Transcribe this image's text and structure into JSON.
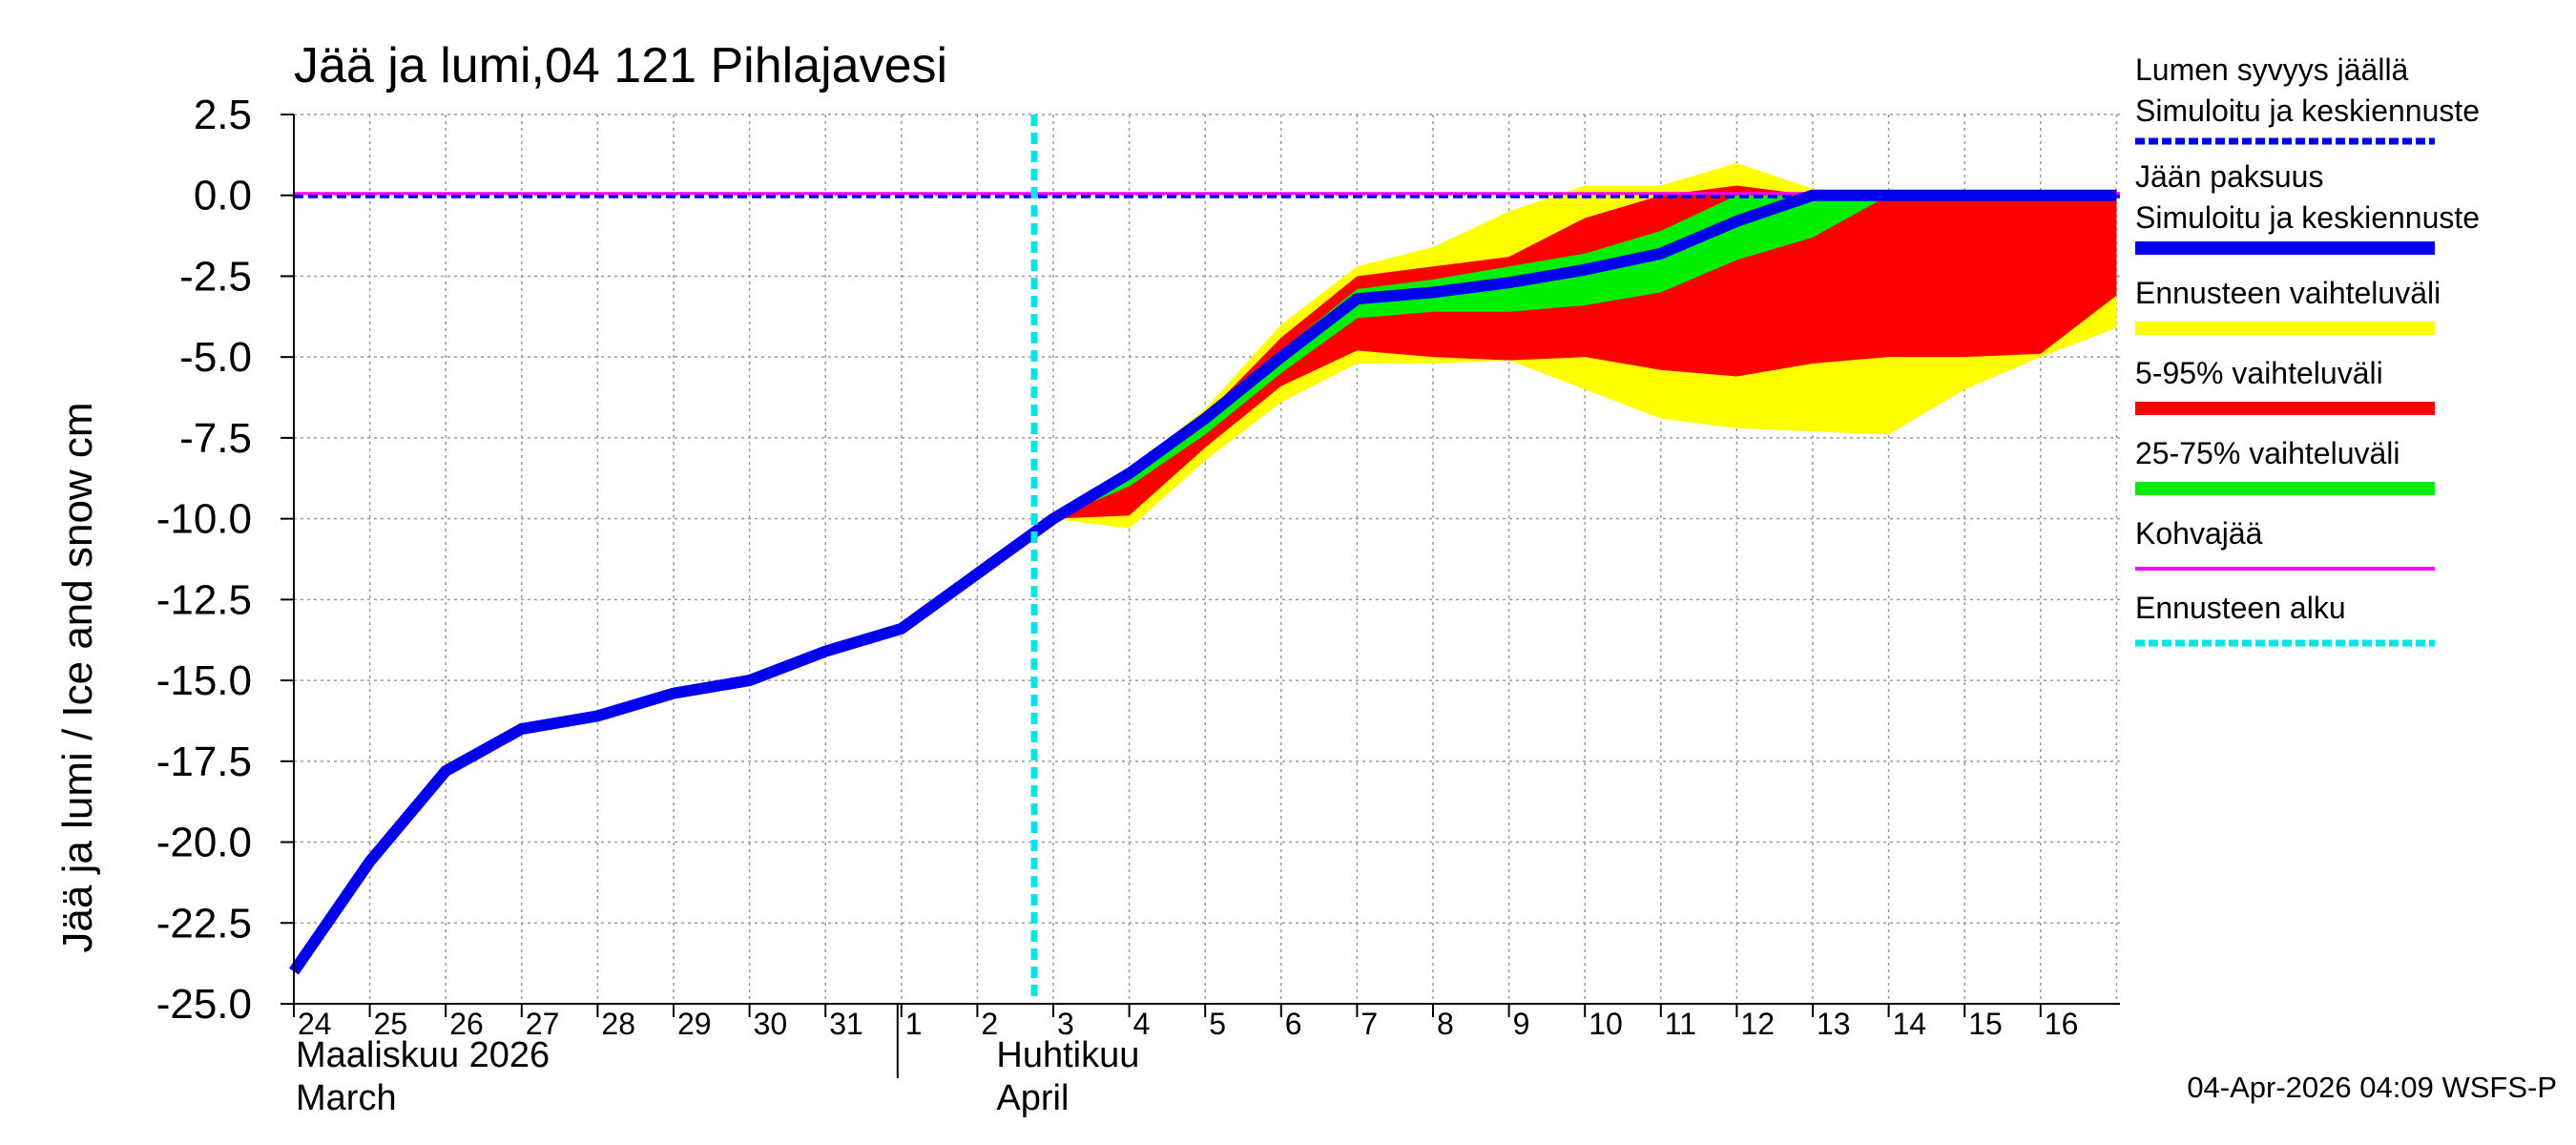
{
  "chart_data": {
    "type": "area",
    "title": "Jää ja lumi,04 121 Pihlajavesi",
    "ylabel": "Jää ja lumi / Ice and snow    cm",
    "ylim": [
      -25,
      2.5
    ],
    "yticks": [
      "2.5",
      "0.0",
      "-2.5",
      "-5.0",
      "-7.5",
      "-10.0",
      "-12.5",
      "-15.0",
      "-17.5",
      "-20.0",
      "-22.5",
      "-25.0"
    ],
    "ytick_values": [
      2.5,
      0,
      -2.5,
      -5,
      -7.5,
      -10,
      -12.5,
      -15,
      -17.5,
      -20,
      -22.5,
      -25
    ],
    "x_day_index_range": [
      0,
      24
    ],
    "xticks": [
      "24",
      "25",
      "26",
      "27",
      "28",
      "29",
      "30",
      "31",
      "1",
      "2",
      "3",
      "4",
      "5",
      "6",
      "7",
      "8",
      "9",
      "10",
      "11",
      "12",
      "13",
      "14",
      "15",
      "16"
    ],
    "month_labels": [
      {
        "line1": "Maaliskuu 2026",
        "line2": "March",
        "day_index": 0
      },
      {
        "line1": "Huhtikuu",
        "line2": "April",
        "day_index": 9
      }
    ],
    "month_separator_day_index": 8,
    "forecast_start_day_index": 10,
    "series": [
      {
        "name": "Ennusteen vaihteluväli",
        "color": "#ffff00",
        "type": "band",
        "x": [
          10,
          11,
          12,
          13,
          14,
          15,
          16,
          17,
          18,
          19,
          20,
          21,
          22,
          23,
          24
        ],
        "upper": [
          -10,
          -8.5,
          -6.6,
          -4,
          -2.2,
          -1.6,
          -0.5,
          0.3,
          0.3,
          1.0,
          0.2,
          0.0,
          0.0,
          0.0,
          0.0
        ],
        "lower": [
          -10,
          -10.3,
          -8.2,
          -6.4,
          -5.2,
          -5.2,
          -5.1,
          -6.0,
          -6.9,
          -7.2,
          -7.3,
          -7.4,
          -6.0,
          -5.0,
          -4.1
        ]
      },
      {
        "name": "5-95% vaihteluväli",
        "color": "#ff0000",
        "type": "band",
        "x": [
          10,
          11,
          12,
          13,
          14,
          15,
          16,
          17,
          18,
          19,
          20,
          21,
          22,
          23,
          24
        ],
        "upper": [
          -10,
          -8.5,
          -6.8,
          -4.4,
          -2.5,
          -2.2,
          -1.9,
          -0.7,
          0.0,
          0.3,
          0.0,
          0.0,
          0.0,
          0.0,
          0.0
        ],
        "lower": [
          -10,
          -9.9,
          -7.8,
          -5.9,
          -4.8,
          -5.0,
          -5.1,
          -5.0,
          -5.4,
          -5.6,
          -5.2,
          -5.0,
          -5.0,
          -4.9,
          -3.1
        ]
      },
      {
        "name": "25-75% vaihteluväli",
        "color": "#00ee00",
        "type": "band",
        "x": [
          10,
          11,
          12,
          13,
          14,
          15,
          16,
          17,
          18,
          19,
          20,
          21,
          22,
          23,
          24
        ],
        "upper": [
          -10,
          -8.7,
          -7.0,
          -4.8,
          -2.9,
          -2.6,
          -2.2,
          -1.8,
          -1.1,
          0.0,
          0.0,
          0.0,
          0.0,
          0.0,
          0.0
        ],
        "lower": [
          -10,
          -9.0,
          -7.4,
          -5.5,
          -3.8,
          -3.6,
          -3.6,
          -3.4,
          -3.0,
          -2.0,
          -1.3,
          0.0,
          0.0,
          0.0,
          0.0
        ]
      },
      {
        "name": "Jään paksuus — Simuloitu ja keskiennuste",
        "color": "#0000ee",
        "type": "line",
        "x": [
          0,
          1,
          2,
          3,
          4,
          5,
          6,
          7,
          8,
          9,
          10,
          11,
          12,
          13,
          14,
          15,
          16,
          17,
          18,
          19,
          20,
          21,
          22,
          23,
          24
        ],
        "values": [
          -24.0,
          -20.6,
          -17.8,
          -16.5,
          -16.1,
          -15.4,
          -15.0,
          -14.1,
          -13.4,
          -11.7,
          -10.0,
          -8.6,
          -6.9,
          -5.0,
          -3.2,
          -3.0,
          -2.7,
          -2.3,
          -1.8,
          -0.8,
          0.0,
          0.0,
          0.0,
          0.0,
          0.0
        ]
      },
      {
        "name": "Lumen syvyys jäällä — Simuloitu ja keskiennuste",
        "color": "#0000ee",
        "type": "dashed-line",
        "x": [
          0,
          24
        ],
        "values": [
          0,
          0
        ]
      },
      {
        "name": "Kohvajää",
        "color": "#ff00ff",
        "type": "line",
        "x": [
          0,
          24
        ],
        "values": [
          0,
          0
        ]
      }
    ],
    "legend": [
      {
        "line1": "Lumen syvyys jäällä",
        "line2": "Simuloitu ja keskiennuste",
        "color": "#0000ee",
        "style": "dashed"
      },
      {
        "line1": "Jään paksuus",
        "line2": "Simuloitu ja keskiennuste",
        "color": "#0000ee",
        "style": "solid"
      },
      {
        "line1": "Ennusteen vaihteluväli",
        "line2": "",
        "color": "#ffff00",
        "style": "solid"
      },
      {
        "line1": "5-95% vaihteluväli",
        "line2": "",
        "color": "#ff0000",
        "style": "solid"
      },
      {
        "line1": "25-75% vaihteluväli",
        "line2": "",
        "color": "#00ee00",
        "style": "solid"
      },
      {
        "line1": "Kohvajää",
        "line2": "",
        "color": "#ff00ff",
        "style": "thin"
      },
      {
        "line1": "Ennusteen alku",
        "line2": "",
        "color": "#00e5e5",
        "style": "dashed"
      }
    ],
    "timestamp": "04-Apr-2026 04:09 WSFS-P"
  }
}
